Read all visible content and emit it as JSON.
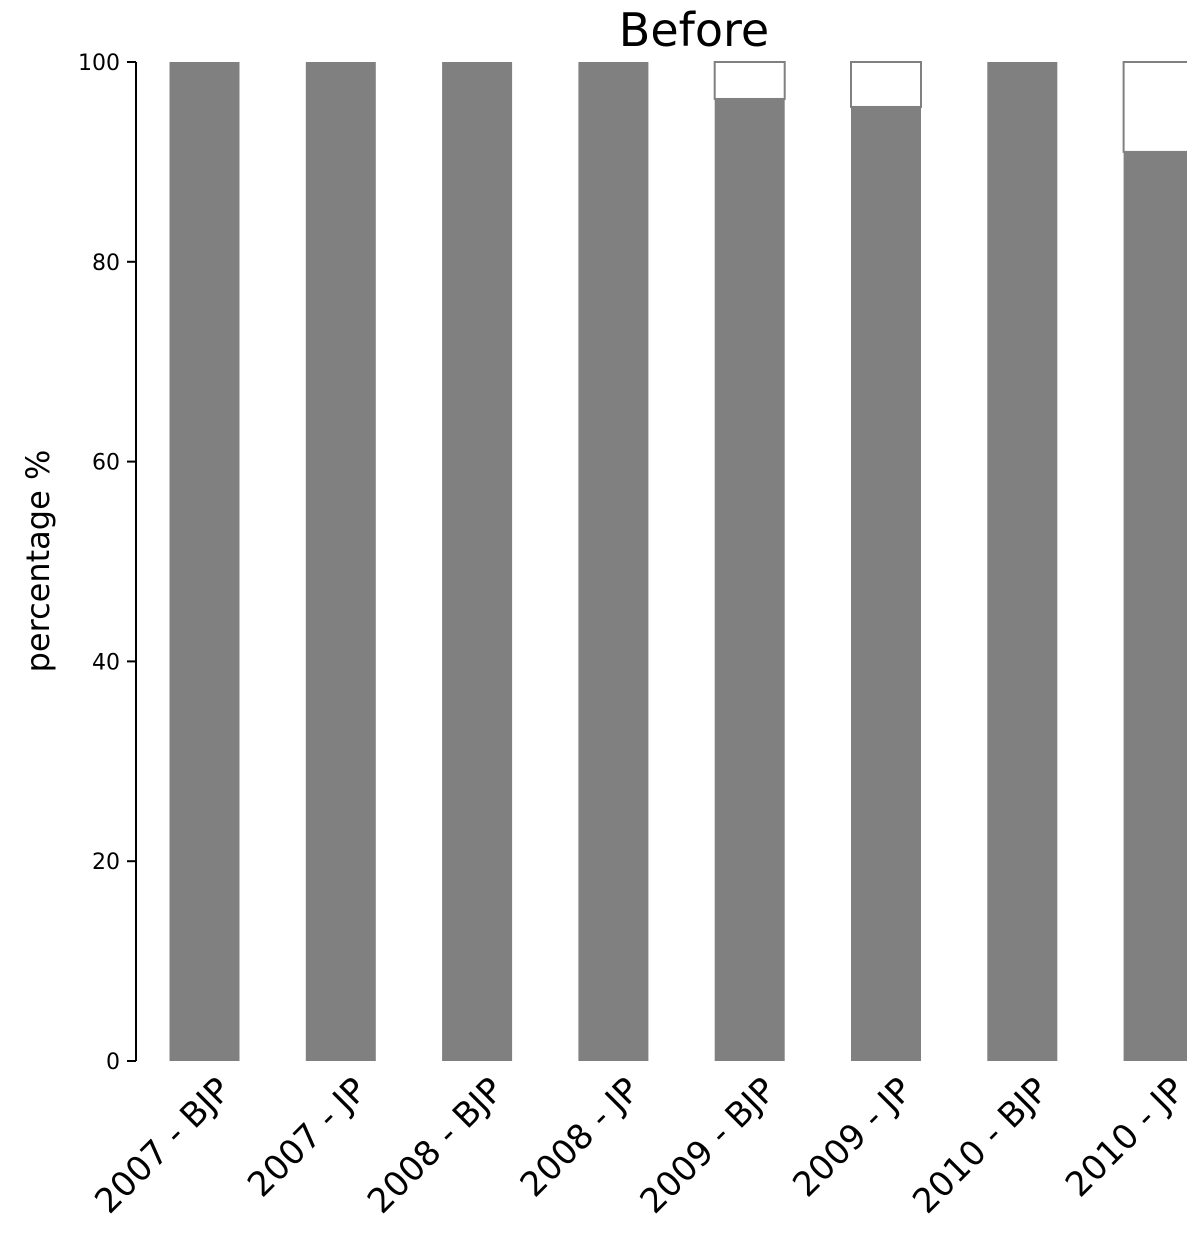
{
  "chart_data": {
    "type": "bar",
    "stacked": true,
    "title": "Before",
    "xlabel": "",
    "ylabel": "percentage %",
    "ylim": [
      0,
      100
    ],
    "yticks": [
      0,
      20,
      40,
      60,
      80,
      100
    ],
    "grid": false,
    "legend": "none",
    "categories": [
      "2007 - BJP",
      "2007 - JP",
      "2008 - BJP",
      "2008 - JP",
      "2009 - BJP",
      "2009 - JP",
      "2010 - BJP",
      "2010 - JP"
    ],
    "series": [
      {
        "color": "#808080",
        "values": [
          100,
          100,
          100,
          100,
          96.3,
          95.5,
          100,
          91.0
        ]
      },
      {
        "color": "#ffffff",
        "edge_color": "#808080",
        "values": [
          0,
          0,
          0,
          0,
          3.7,
          4.5,
          0,
          9.0
        ]
      }
    ]
  }
}
